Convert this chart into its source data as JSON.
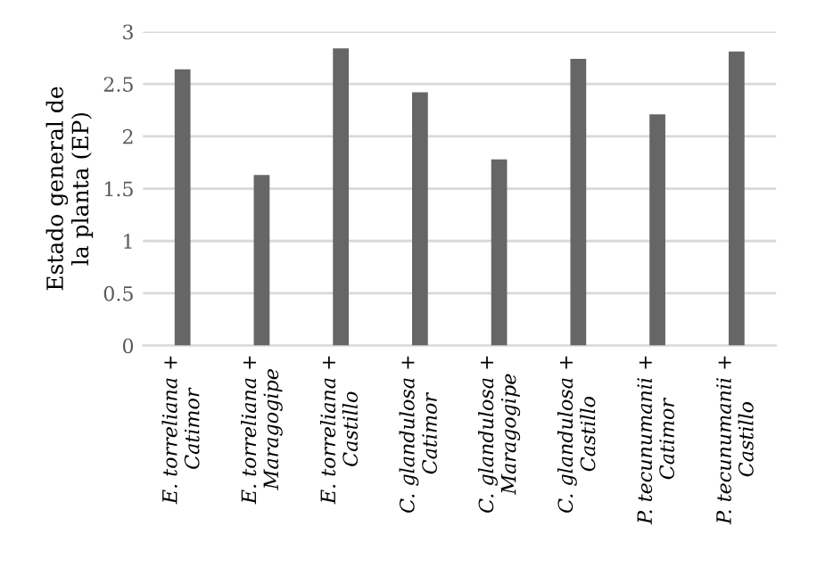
{
  "chart_data": {
    "type": "bar",
    "ylabel": "Estado general de\nla planta (EP)",
    "categories": [
      "E. torreliana +\nCatimor",
      "E. torreliana +\nMaragogipe",
      "E. torreliana +\nCastillo",
      "C. glandulosa +\nCatimor",
      "C. glandulosa +\nMaragogipe",
      "C. glandulosa +\nCastillo",
      "P. tecunumanii +\nCatimor",
      "P. tecunumanii +\nCastillo"
    ],
    "values": [
      2.64,
      1.63,
      2.84,
      2.42,
      1.78,
      2.74,
      2.21,
      2.81
    ],
    "color": "#666666",
    "ylim": [
      0,
      3
    ],
    "yticks": [
      0,
      0.5,
      1,
      1.5,
      2,
      2.5,
      3
    ],
    "grid": "y"
  }
}
